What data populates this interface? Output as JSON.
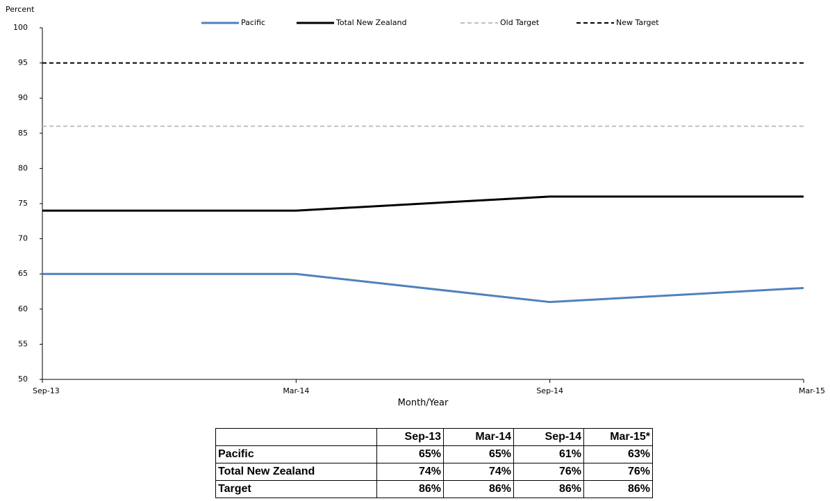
{
  "chart_data": {
    "type": "line",
    "y_label": "Percent",
    "x_label": "Month/Year",
    "categories": [
      "Sep-13",
      "Mar-14",
      "Sep-14",
      "Mar-15"
    ],
    "series": [
      {
        "name": "Pacific",
        "color": "#4f81bd",
        "dashed": false,
        "values": [
          65,
          65,
          61,
          63
        ]
      },
      {
        "name": "Total New Zealand",
        "color": "#000000",
        "dashed": false,
        "values": [
          74,
          74,
          76,
          76
        ]
      },
      {
        "name": "Old Target",
        "color": "#c0c0c0",
        "dashed": true,
        "values": [
          86,
          86,
          86,
          86
        ]
      },
      {
        "name": "New Target",
        "color": "#000000",
        "dashed": true,
        "values": [
          95,
          95,
          95,
          95
        ]
      }
    ],
    "ylim": [
      50,
      100
    ],
    "yticks": [
      50,
      55,
      60,
      65,
      70,
      75,
      80,
      85,
      90,
      95,
      100
    ],
    "grid": false,
    "legend": "top"
  },
  "table": {
    "columns": [
      "Sep-13",
      "Mar-14",
      "Sep-14",
      "Mar-15*"
    ],
    "rows": [
      [
        "Pacific",
        "65%",
        "65%",
        "61%",
        "63%"
      ],
      [
        "Total New Zealand",
        "74%",
        "74%",
        "76%",
        "76%"
      ],
      [
        "Target",
        "86%",
        "86%",
        "86%",
        "86%"
      ]
    ]
  }
}
